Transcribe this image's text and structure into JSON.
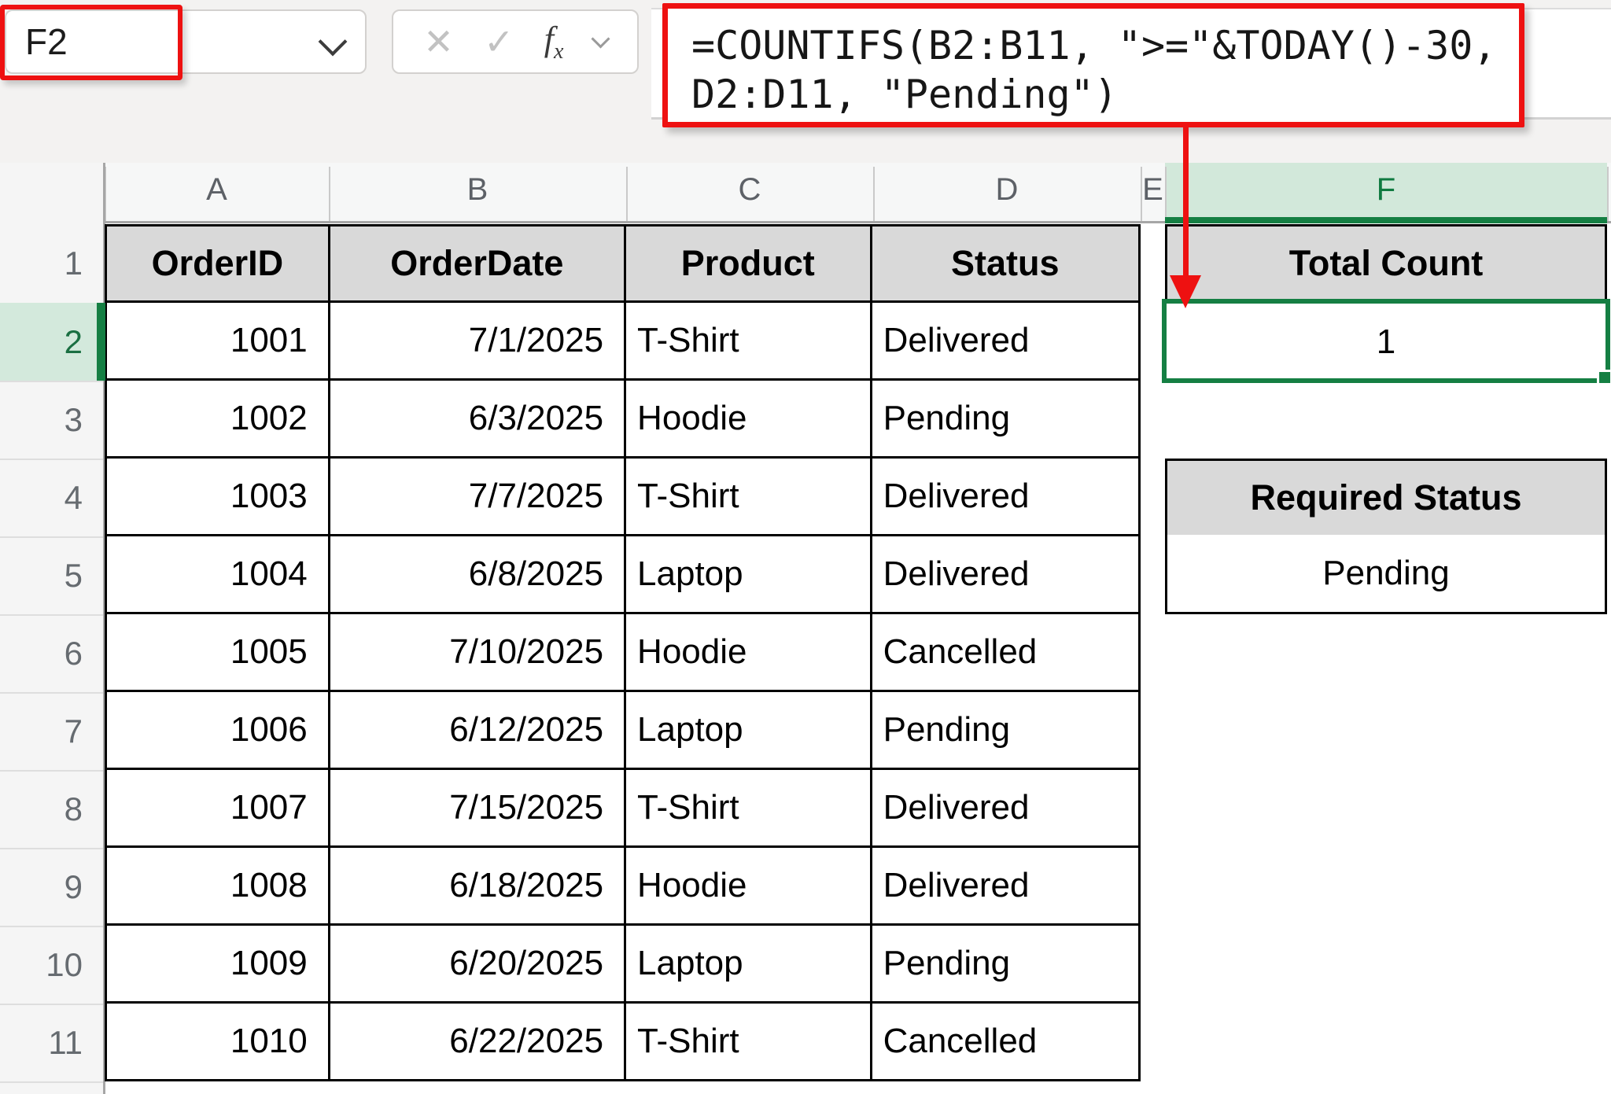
{
  "name_box": {
    "value": "F2"
  },
  "formula_bar": {
    "cancel_icon": "✕",
    "enter_icon": "✓",
    "fx_label": "fx",
    "formula_line1": "=COUNTIFS(B2:B11, \">=\"&TODAY()-30,",
    "formula_line2": "D2:D11, \"Pending\")"
  },
  "grid": {
    "column_letters": [
      "A",
      "B",
      "C",
      "D",
      "E",
      "F"
    ],
    "selected_column": "F",
    "row_numbers": [
      "1",
      "2",
      "3",
      "4",
      "5",
      "6",
      "7",
      "8",
      "9",
      "10",
      "11"
    ],
    "selected_row": "2",
    "selected_cell": "F2"
  },
  "table": {
    "headers": [
      "OrderID",
      "OrderDate",
      "Product",
      "Status"
    ],
    "rows": [
      [
        "1001",
        "7/1/2025",
        "T-Shirt",
        "Delivered"
      ],
      [
        "1002",
        "6/3/2025",
        "Hoodie",
        "Pending"
      ],
      [
        "1003",
        "7/7/2025",
        "T-Shirt",
        "Delivered"
      ],
      [
        "1004",
        "6/8/2025",
        "Laptop",
        "Delivered"
      ],
      [
        "1005",
        "7/10/2025",
        "Hoodie",
        "Cancelled"
      ],
      [
        "1006",
        "6/12/2025",
        "Laptop",
        "Pending"
      ],
      [
        "1007",
        "7/15/2025",
        "T-Shirt",
        "Delivered"
      ],
      [
        "1008",
        "6/18/2025",
        "Hoodie",
        "Delivered"
      ],
      [
        "1009",
        "6/20/2025",
        "Laptop",
        "Pending"
      ],
      [
        "1010",
        "6/22/2025",
        "T-Shirt",
        "Cancelled"
      ]
    ]
  },
  "summary": {
    "total_count_label": "Total Count",
    "total_count_value": "1",
    "required_status_label": "Required Status",
    "required_status_value": "Pending"
  },
  "colors": {
    "annotation_red": "#ee1111",
    "selection_green": "#157f43",
    "selection_tint": "#d3e9dc",
    "header_fill": "#d9d9d9"
  }
}
